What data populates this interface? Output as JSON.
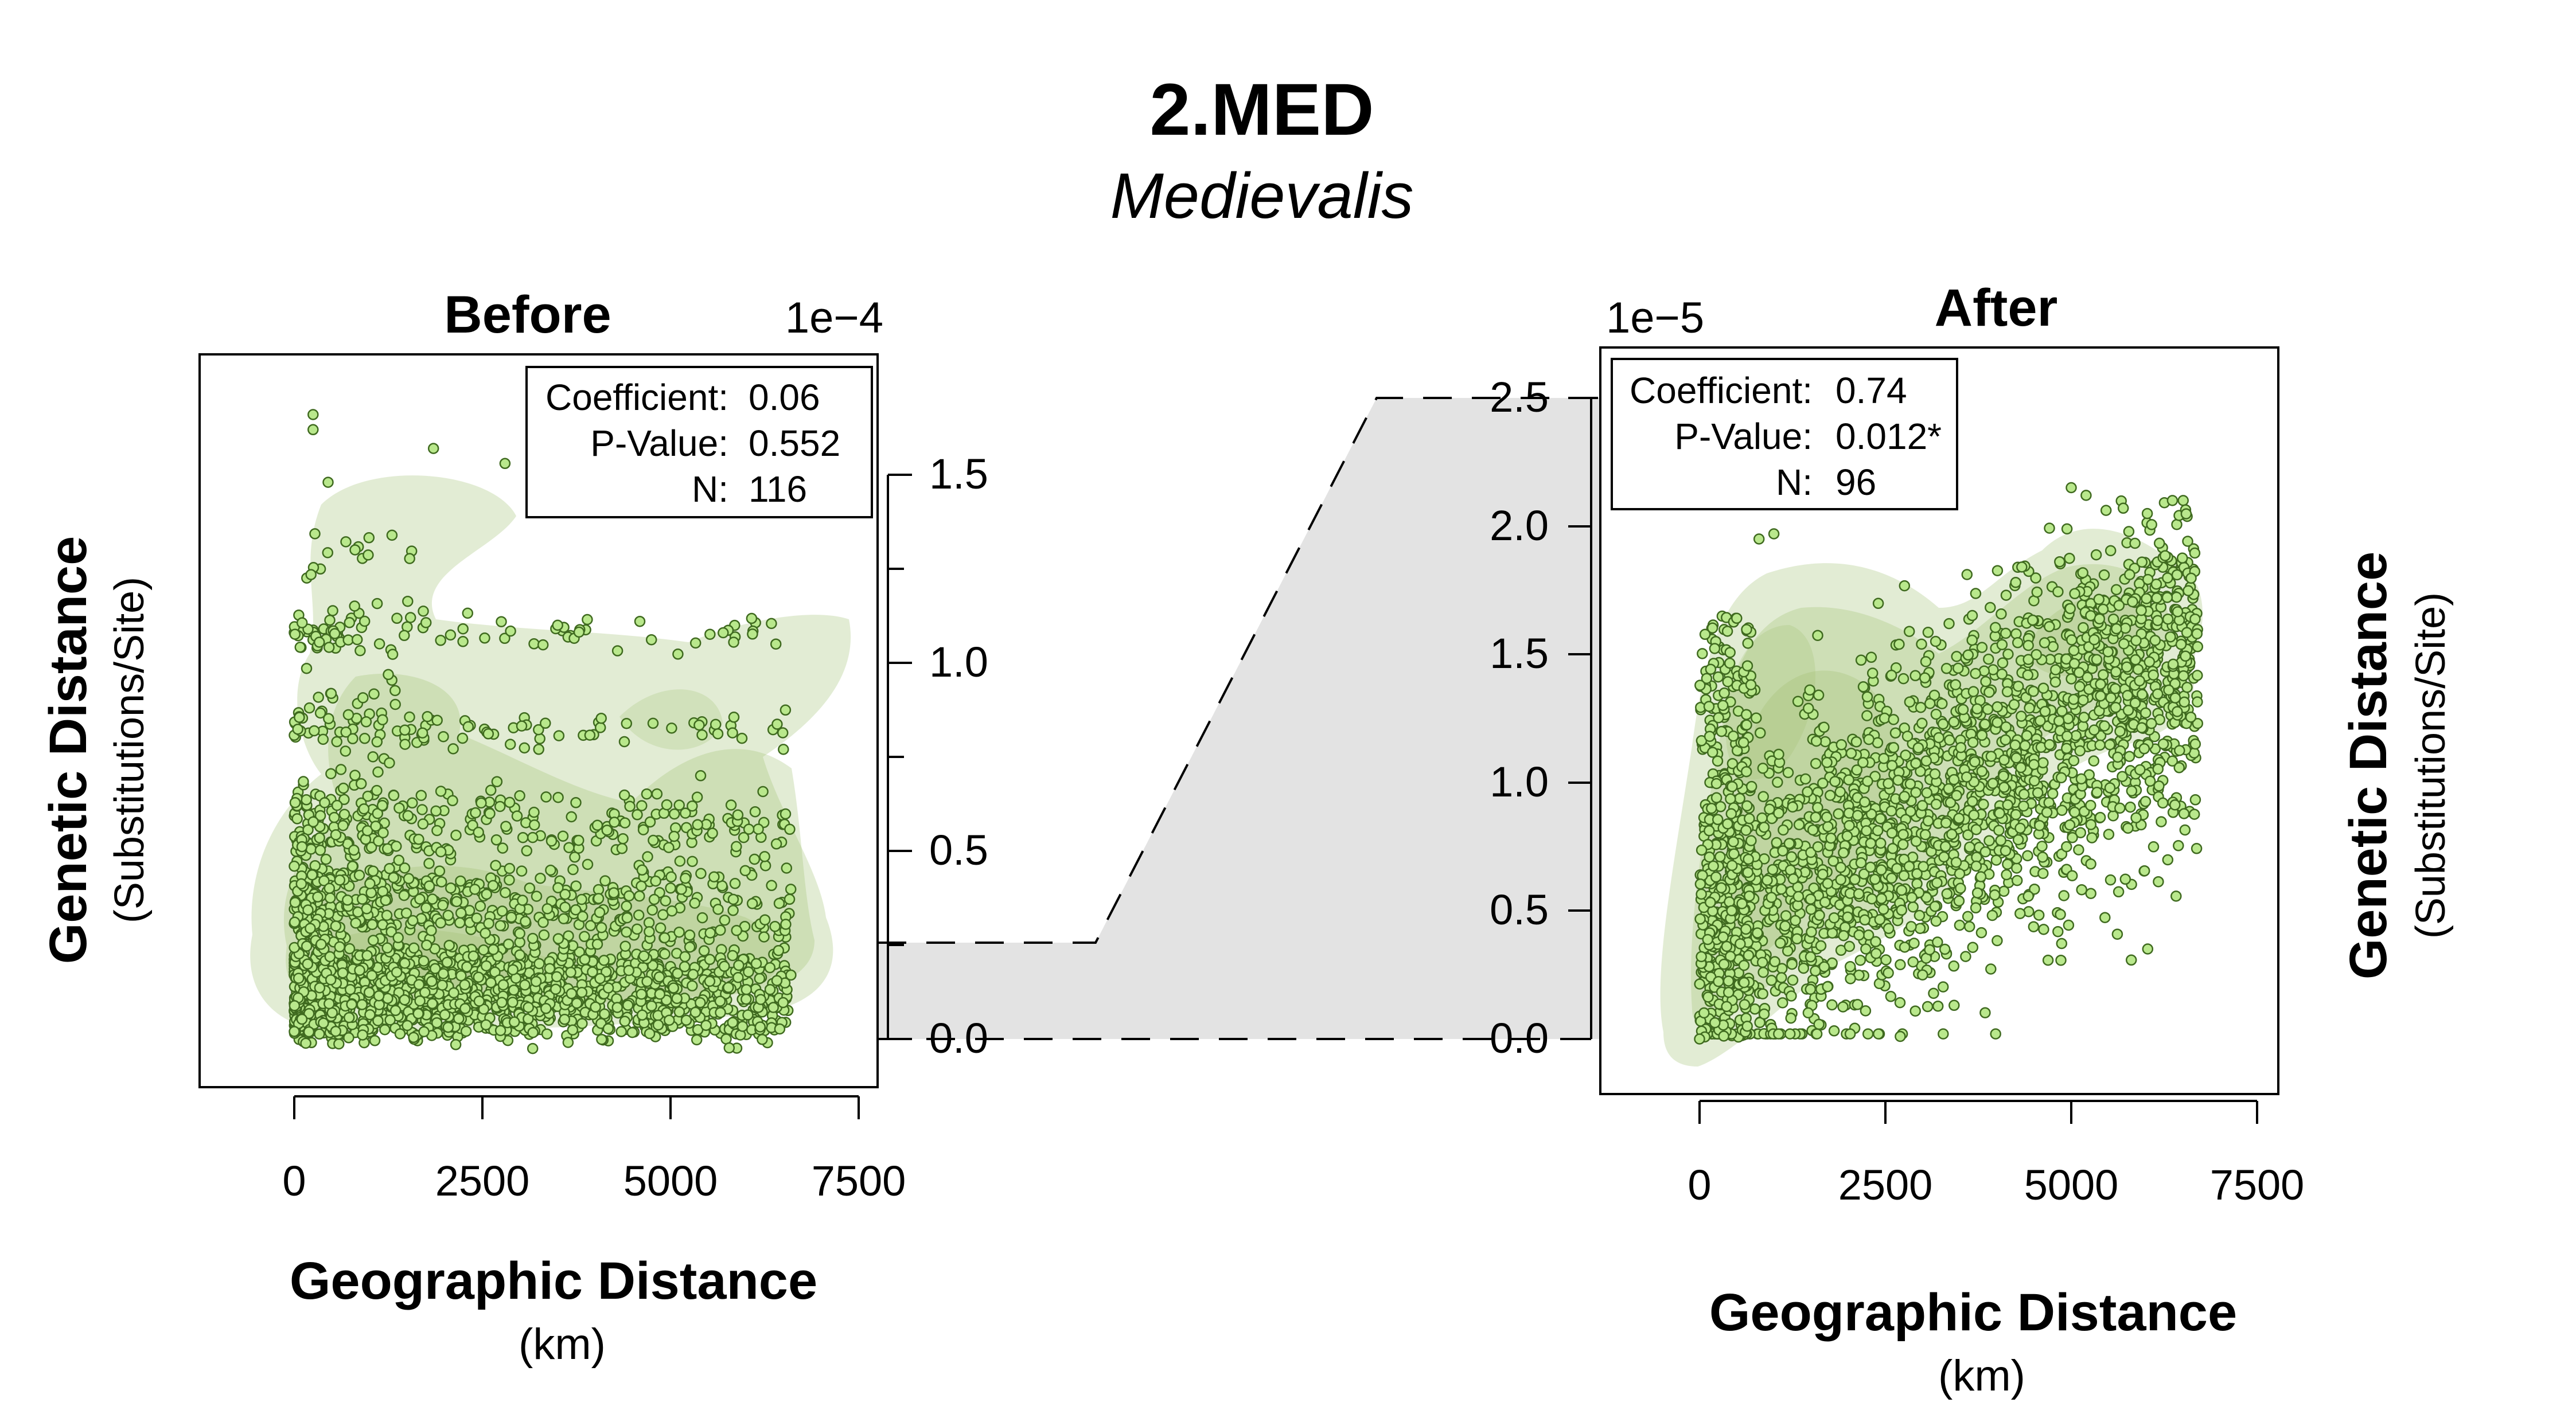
{
  "figure": {
    "title": "2.MED",
    "subtitle": "Medievalis"
  },
  "colors": {
    "point_fill": "#b9e88c",
    "point_stroke": "#3f6a1f",
    "density": "#9fbf6f",
    "bridge_fill": "#e3e3e3"
  },
  "chart_data": [
    {
      "type": "scatter",
      "panel": "Before",
      "title": "Before",
      "xlabel": "Geographic Distance",
      "xunit": "(km)",
      "ylabel": "Genetic Distance",
      "yunit": "(Substitutions/Site)",
      "y_multiplier": "1e−4",
      "x_ticks": [
        "0",
        "2500",
        "5000",
        "7500"
      ],
      "x_tick_values": [
        0,
        2500,
        5000,
        7500
      ],
      "y_ticks": [
        "0.0",
        "0.5",
        "1.0",
        "1.5"
      ],
      "y_tick_values": [
        0,
        0.5,
        1.0,
        1.5
      ],
      "xlim": [
        -2500,
        7500
      ],
      "ylim": [
        0,
        1.6
      ],
      "stats": {
        "labels": [
          "Coefficient:",
          "P-Value:",
          "N:"
        ],
        "values": [
          "0.06",
          "0.552",
          "116"
        ]
      },
      "points_sample": [
        {
          "x": 250,
          "y": 1.66
        },
        {
          "x": 250,
          "y": 1.62
        },
        {
          "x": 450,
          "y": 1.48
        },
        {
          "x": 1850,
          "y": 1.57
        },
        {
          "x": 2800,
          "y": 1.53
        },
        {
          "x": 6400,
          "y": 1.05
        },
        {
          "x": 5700,
          "y": 1.08
        },
        {
          "x": 3500,
          "y": 1.1
        },
        {
          "x": 5400,
          "y": 0.7
        },
        {
          "x": 6500,
          "y": 0.77
        },
        {
          "x": 6600,
          "y": 0.17
        },
        {
          "x": 0,
          "y": 0.02
        }
      ]
    },
    {
      "type": "scatter",
      "panel": "After",
      "title": "After",
      "xlabel": "Geographic Distance",
      "xunit": "(km)",
      "ylabel": "Genetic Distance",
      "yunit": "(Substitutions/Site)",
      "y_multiplier": "1e−5",
      "x_ticks": [
        "0",
        "2500",
        "5000",
        "7500"
      ],
      "x_tick_values": [
        0,
        2500,
        5000,
        7500
      ],
      "y_ticks": [
        "0.0",
        "0.5",
        "1.0",
        "1.5",
        "2.0",
        "2.5"
      ],
      "y_tick_values": [
        0,
        0.5,
        1.0,
        1.5,
        2.0,
        2.5
      ],
      "xlim": [
        -2500,
        7500
      ],
      "ylim": [
        0,
        2.5
      ],
      "stats": {
        "labels": [
          "Coefficient:",
          "P-Value:",
          "N:"
        ],
        "values": [
          "0.74",
          "0.012*",
          "96"
        ]
      },
      "points_sample": [
        {
          "x": 1000,
          "y": 1.97
        },
        {
          "x": 800,
          "y": 1.95
        },
        {
          "x": 5000,
          "y": 2.15
        },
        {
          "x": 5200,
          "y": 2.12
        },
        {
          "x": 5700,
          "y": 2.07
        },
        {
          "x": 6700,
          "y": 1.53
        },
        {
          "x": 6400,
          "y": 1.33
        },
        {
          "x": 2700,
          "y": 0.01
        },
        {
          "x": 0,
          "y": 0.0
        },
        {
          "x": 3000,
          "y": 0.25
        },
        {
          "x": 3300,
          "y": 0.35
        }
      ]
    }
  ]
}
